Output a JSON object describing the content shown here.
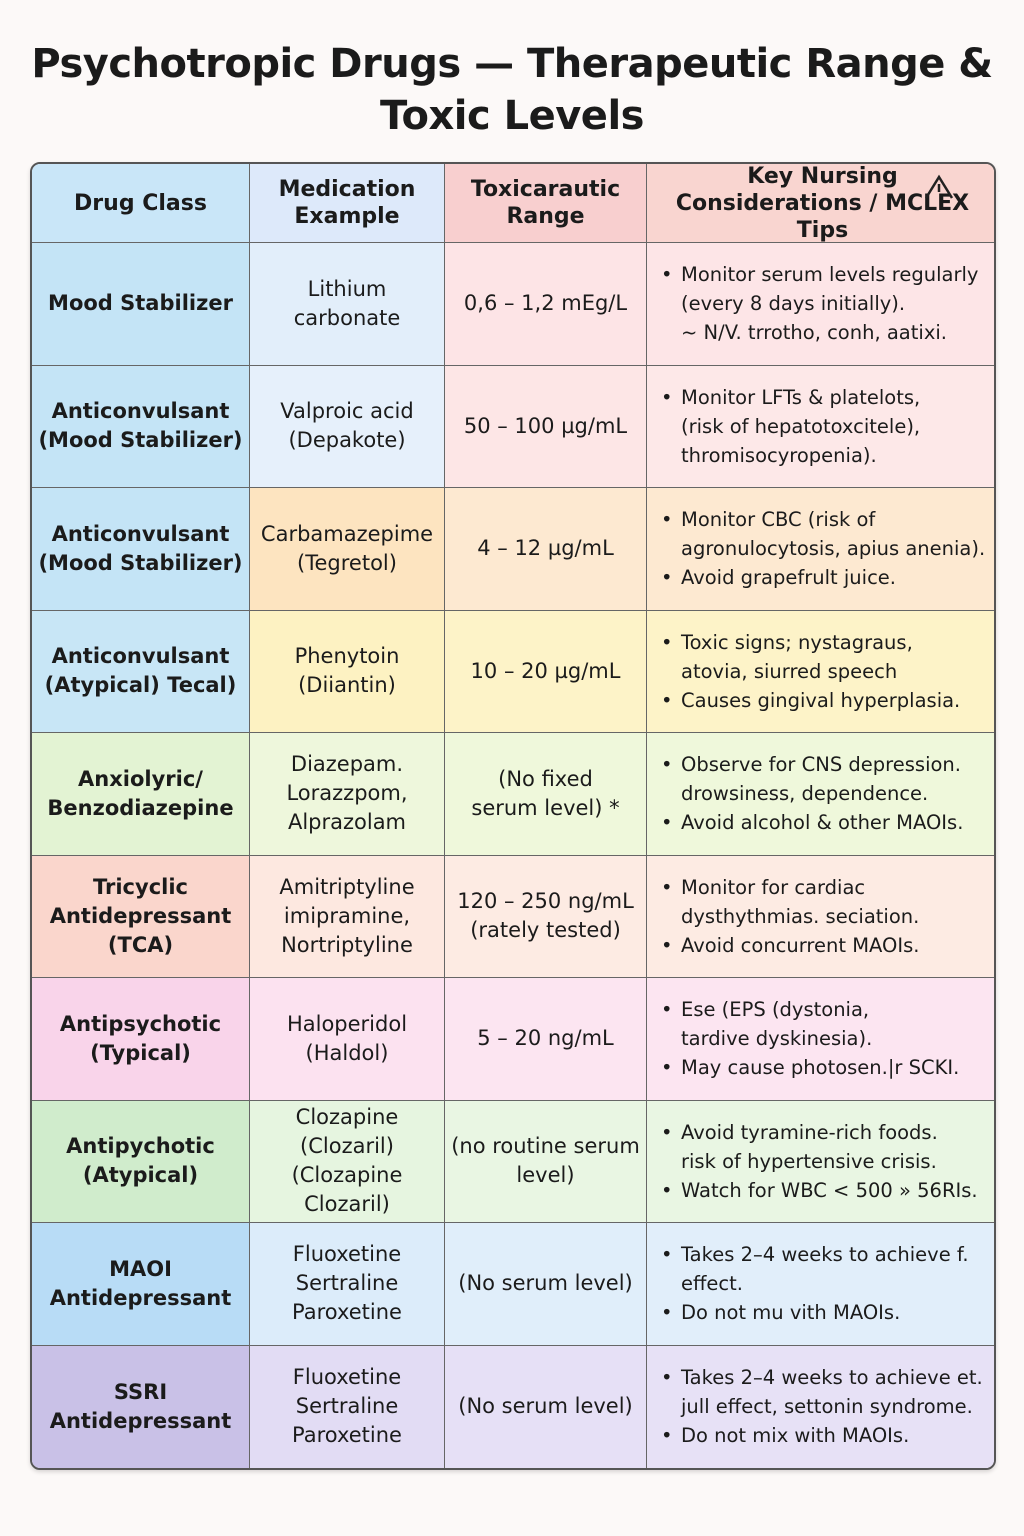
{
  "header": {
    "title": "Psychotropic Drugs — Therapeutic Range &\nToxic Levels"
  },
  "table": {
    "columns": [
      "Drug Class",
      "Medication\nExample",
      "Toxicarautic\nRange",
      "Key Nursing\nConsiderations / MCLEX Tips"
    ],
    "rows": [
      {
        "drug_class": "Mood Stabilizer",
        "medication": "Lithium\ncarbonate",
        "range": "0,6 – 1,2 mEg/L",
        "notes": [
          "Monitor serum levels regularly\n(every 8 days initially).\n~ N/V. trrotho, conh, aatixi."
        ]
      },
      {
        "drug_class": "Anticonvulsant\n(Mood Stabilizer)",
        "medication": "Valproic acid\n(Depakote)",
        "range": "50 – 100 µg/mL",
        "notes": [
          "Monitor LFTs & platelots,\n(risk of hepatotoxcitele),\nthromisocyropenia)."
        ]
      },
      {
        "drug_class": "Anticonvulsant\n(Mood Stabilizer)",
        "medication": "Carbamazepime\n(Tegretol)",
        "range": "4 – 12 µg/mL",
        "notes": [
          "Monitor CBC (risk of\nagronulocytosis, apius anenia).",
          "Avoid grapefrult juice."
        ]
      },
      {
        "drug_class": "Anticonvulsant\n(Atypical) Tecal)",
        "medication": "Phenytoin\n(Diiantin)",
        "range": "10 – 20 µg/mL",
        "notes": [
          "Toxic signs; nystagraus,\natovia, siurred speech",
          "Causes gingival hyperplasia."
        ]
      },
      {
        "drug_class": "Anxiolyric/\nBenzodiazepine",
        "medication": "Diazepam.\nLorazzpom,\nAlprazolam",
        "range": "(No fixed\nserum level) *",
        "notes": [
          "Observe for CNS depression.\ndrowsiness, dependence.",
          "Avoid alcohol & other MAOIs."
        ]
      },
      {
        "drug_class": "Tricyclic\nAntidepressant\n(TCA)",
        "medication": "Amitriptyline\nimipramine,\nNortriptyline",
        "range": "120 – 250 ng/mL\n(rately tested)",
        "notes": [
          "Monitor for cardiac\ndysthythmias. seciation.",
          "Avoid concurrent MAOIs."
        ]
      },
      {
        "drug_class": "Antipsychotic\n(Typical)",
        "medication": "Haloperidol\n(Haldol)",
        "range": "5 – 20 ng/mL",
        "notes": [
          "Ese (EPS (dystonia,\ntardive dyskinesia).",
          "May cause photosen.|r SCKI."
        ]
      },
      {
        "drug_class": "Antipychotic\n(Atypical)",
        "medication": "Clozapine\n(Clozaril)\n(Clozapine Clozaril)",
        "range": "(no routine serum\nlevel)",
        "notes": [
          "Avoid tyramine-rich foods.\nrisk of hypertensive crisis.",
          "Watch for WBC < 500 » 56RIs."
        ]
      },
      {
        "drug_class": "MAOI\nAntidepressant",
        "medication": "Fluoxetine\nSertraline\nParoxetine",
        "range": "(No serum level)",
        "notes": [
          "Takes 2–4 weeks to achieve f.\neffect.",
          "Do not mu vith MAOIs."
        ]
      },
      {
        "drug_class": "SSRI\nAntidepressant",
        "medication": "Fluoxetine\nSertraline\nParoxetine",
        "range": "(No serum level)",
        "notes": [
          "Takes 2–4 weeks to achieve et.\njull effect, settonin syndrome.",
          "Do not mix with MAOIs."
        ]
      }
    ]
  }
}
